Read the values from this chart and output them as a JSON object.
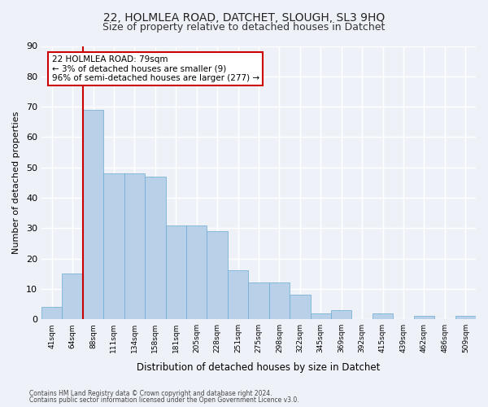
{
  "title1": "22, HOLMLEA ROAD, DATCHET, SLOUGH, SL3 9HQ",
  "title2": "Size of property relative to detached houses in Datchet",
  "xlabel": "Distribution of detached houses by size in Datchet",
  "ylabel": "Number of detached properties",
  "bar_labels": [
    "41sqm",
    "64sqm",
    "88sqm",
    "111sqm",
    "134sqm",
    "158sqm",
    "181sqm",
    "205sqm",
    "228sqm",
    "251sqm",
    "275sqm",
    "298sqm",
    "322sqm",
    "345sqm",
    "369sqm",
    "392sqm",
    "415sqm",
    "439sqm",
    "462sqm",
    "486sqm",
    "509sqm"
  ],
  "bar_values": [
    4,
    15,
    69,
    48,
    48,
    47,
    31,
    31,
    29,
    16,
    12,
    12,
    8,
    2,
    3,
    0,
    2,
    0,
    1,
    0,
    1
  ],
  "bar_color": "#b8d0e8",
  "bar_edge_color": "#6aaad4",
  "bar_width": 1.0,
  "vline_x_index": 2,
  "vline_color": "#cc0000",
  "ylim": [
    0,
    90
  ],
  "yticks": [
    0,
    10,
    20,
    30,
    40,
    50,
    60,
    70,
    80,
    90
  ],
  "annotation_text": "22 HOLMLEA ROAD: 79sqm\n← 3% of detached houses are smaller (9)\n96% of semi-detached houses are larger (277) →",
  "annotation_box_color": "#cc0000",
  "footnote1": "Contains HM Land Registry data © Crown copyright and database right 2024.",
  "footnote2": "Contains public sector information licensed under the Open Government Licence v3.0.",
  "bg_color": "#eef2f8",
  "plot_bg_color": "#eef2f8",
  "grid_color": "#ffffff",
  "title1_fontsize": 10,
  "title2_fontsize": 9
}
